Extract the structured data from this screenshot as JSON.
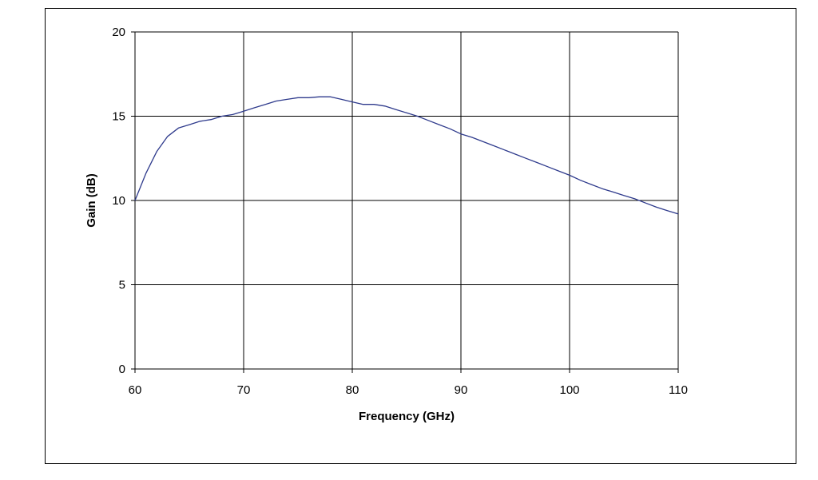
{
  "chart_data": {
    "type": "line",
    "title": "",
    "xlabel": "Frequency (GHz)",
    "ylabel": "Gain (dB)",
    "xlim": [
      60,
      110
    ],
    "ylim": [
      0,
      20
    ],
    "x_ticks": [
      60,
      70,
      80,
      90,
      100,
      110
    ],
    "y_ticks": [
      0,
      5,
      10,
      15,
      20
    ],
    "x_tick_labels": [
      "60",
      "70",
      "80",
      "90",
      "100",
      "110"
    ],
    "y_tick_labels": [
      "0",
      "5",
      "10",
      "15",
      "20"
    ],
    "grid": true,
    "legend": "none",
    "line_color": "#2e3a8c",
    "series": [
      {
        "x": [
          60,
          61,
          62,
          63,
          64,
          65,
          66,
          67,
          68,
          69,
          70,
          71,
          72,
          73,
          74,
          75,
          76,
          77,
          78,
          79,
          80,
          81,
          82,
          83,
          84,
          85,
          86,
          87,
          88,
          89,
          90,
          91,
          92,
          93,
          94,
          95,
          96,
          97,
          98,
          99,
          100,
          101,
          102,
          103,
          104,
          105,
          106,
          107,
          108,
          109,
          110
        ],
        "values": [
          10.0,
          11.6,
          12.9,
          13.8,
          14.3,
          14.5,
          14.7,
          14.8,
          15.0,
          15.1,
          15.3,
          15.5,
          15.7,
          15.9,
          16.0,
          16.1,
          16.1,
          16.15,
          16.15,
          16.0,
          15.85,
          15.7,
          15.7,
          15.6,
          15.4,
          15.2,
          15.0,
          14.75,
          14.5,
          14.25,
          13.95,
          13.75,
          13.5,
          13.25,
          13.0,
          12.75,
          12.5,
          12.25,
          12.0,
          11.75,
          11.5,
          11.2,
          10.95,
          10.7,
          10.5,
          10.3,
          10.1,
          9.85,
          9.6,
          9.4,
          9.2
        ]
      }
    ]
  }
}
